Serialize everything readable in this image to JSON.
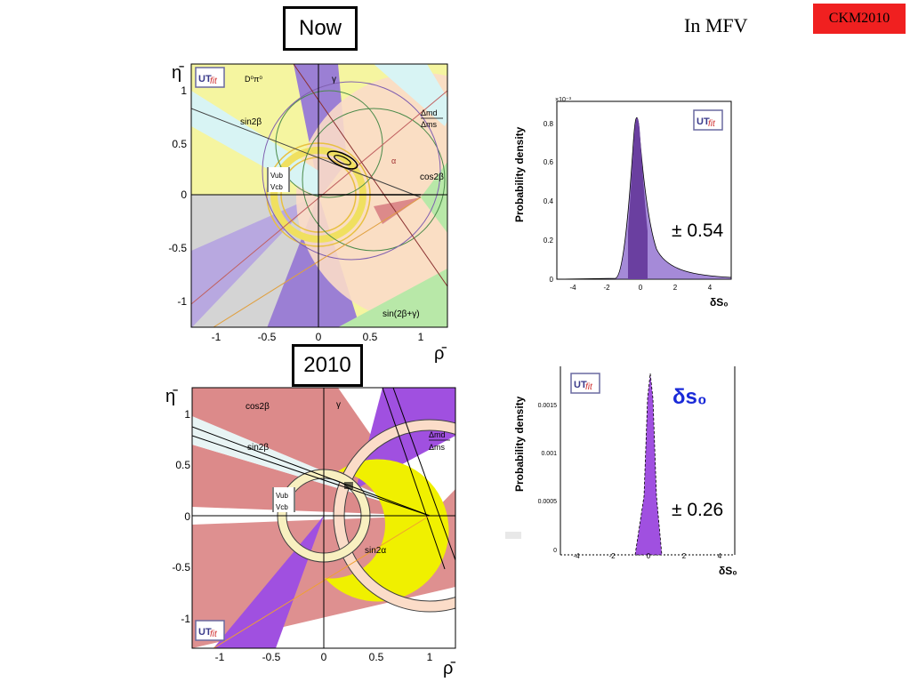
{
  "header": {
    "now_label": "Now",
    "year_label": "2010",
    "mfv_label": "In MFV",
    "conf_tag": "CKM2010"
  },
  "ut_plots": {
    "logo_ut": "UT",
    "logo_fit": "fit",
    "eta_axis": "η̄",
    "rho_axis": "ρ̄",
    "y_ticks": [
      "1",
      "0.5",
      "0",
      "-0.5",
      "-1"
    ],
    "x_ticks": [
      "-1",
      "-0.5",
      "0",
      "0.5",
      "1"
    ],
    "top": {
      "d0pi0": "D⁰π⁰",
      "gamma": "γ",
      "sin2beta": "sin2β",
      "dm_num": "Δmd",
      "dm_den": "Δms",
      "alpha": "α",
      "cos2beta": "cos2β",
      "vub": "Vub",
      "vcb": "Vcb",
      "sin2bg": "sin(2β+γ)"
    },
    "bottom": {
      "cos2beta": "cos2β",
      "gamma": "γ",
      "sin2beta": "sin2β",
      "dm_num": "Δmd",
      "dm_den": "Δms",
      "vub": "Vub",
      "vcb": "Vcb",
      "sin2alpha": "sin2α"
    }
  },
  "pdf_plots": {
    "ylabel": "Probability density",
    "xlabel": "δS₀",
    "top": {
      "exp": "×10⁻³",
      "y_ticks": [
        "0.8",
        "0.6",
        "0.4",
        "0.2",
        "0"
      ],
      "x_ticks": [
        "-4",
        "-2",
        "0",
        "2",
        "4"
      ],
      "error": "± 0.54"
    },
    "bottom": {
      "y_ticks": [
        "0.0015",
        "0.001",
        "0.0005",
        "0"
      ],
      "x_ticks": [
        "-4",
        "-2",
        "0",
        "2",
        "4"
      ],
      "title": "δs₀",
      "error": "± 0.26"
    }
  },
  "colors": {
    "purple": "#9b7fd4",
    "dark_purple": "#6a3fa0",
    "yellow": "#f5f5a0",
    "peach": "#fbdcc8",
    "pink": "#dc8a8a",
    "green": "#b8e8a8",
    "cyan": "#d8f4f4",
    "red_tag": "#f02020",
    "blue_title": "#1a2ad8"
  }
}
